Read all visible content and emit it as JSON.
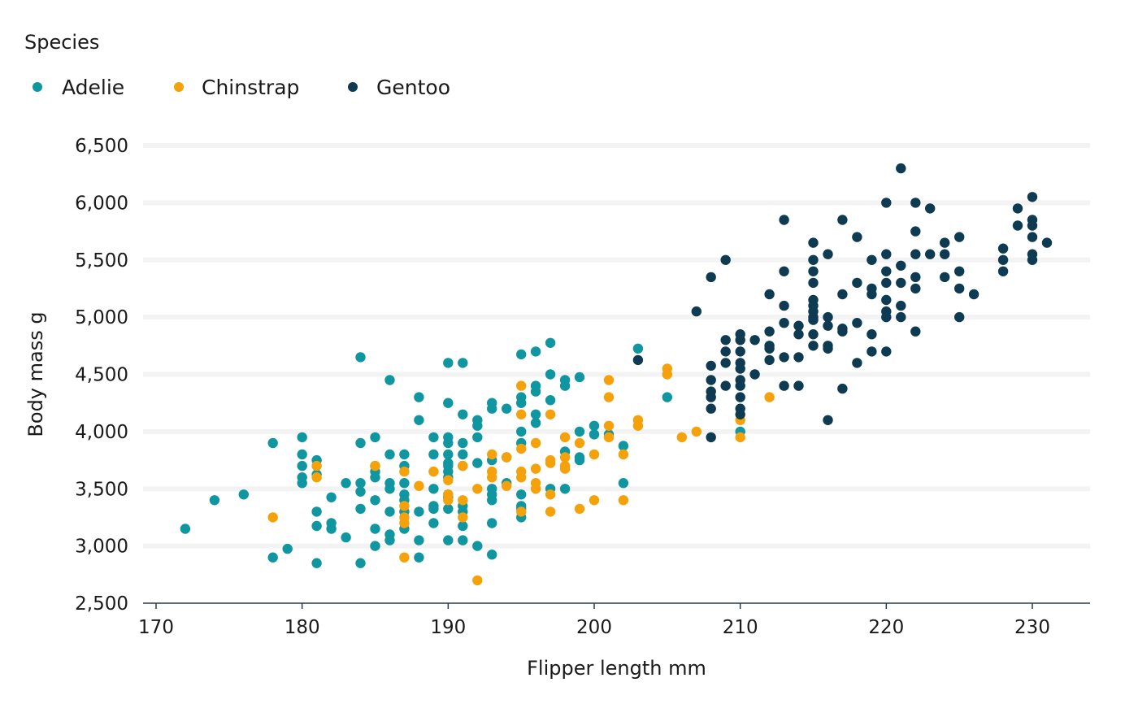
{
  "colors": {
    "Adelie": "#0f96a0",
    "Chinstrap": "#f5a10a",
    "Gentoo": "#0e3b52",
    "grid": "#f3f3f3",
    "axis": "#2b3a4a",
    "text": "#1a1a1a"
  },
  "chart_data": {
    "type": "scatter",
    "title": "",
    "xlabel": "Flipper length mm",
    "ylabel": "Body mass g",
    "legend_title": "Species",
    "legend_position": "top-left",
    "grid": "horizontal",
    "xlim": [
      169,
      234
    ],
    "ylim": [
      2500,
      6500
    ],
    "x_ticks": [
      170,
      180,
      190,
      200,
      210,
      220,
      230
    ],
    "y_ticks": [
      2500,
      3000,
      3500,
      4000,
      4500,
      5000,
      5500,
      6000,
      6500
    ],
    "x_tick_labels": [
      "170",
      "180",
      "190",
      "200",
      "210",
      "220",
      "230"
    ],
    "y_tick_labels": [
      "2,500",
      "3,000",
      "3,500",
      "4,000",
      "4,500",
      "5,000",
      "5,500",
      "6,000",
      "6,500"
    ],
    "series": [
      {
        "name": "Adelie",
        "points": [
          [
            172,
            3150
          ],
          [
            174,
            3400
          ],
          [
            176,
            3450
          ],
          [
            178,
            3900
          ],
          [
            178,
            2900
          ],
          [
            179,
            2975
          ],
          [
            180,
            3950
          ],
          [
            180,
            3800
          ],
          [
            180,
            3700
          ],
          [
            180,
            3600
          ],
          [
            180,
            3550
          ],
          [
            181,
            3750
          ],
          [
            181,
            3625
          ],
          [
            181,
            3300
          ],
          [
            181,
            3175
          ],
          [
            181,
            2850
          ],
          [
            182,
            3425
          ],
          [
            182,
            3200
          ],
          [
            182,
            3150
          ],
          [
            183,
            3550
          ],
          [
            183,
            3075
          ],
          [
            184,
            4650
          ],
          [
            184,
            3900
          ],
          [
            184,
            3550
          ],
          [
            184,
            3475
          ],
          [
            184,
            3325
          ],
          [
            184,
            2850
          ],
          [
            185,
            3950
          ],
          [
            185,
            3700
          ],
          [
            185,
            3650
          ],
          [
            185,
            3600
          ],
          [
            185,
            3400
          ],
          [
            185,
            3150
          ],
          [
            185,
            3000
          ],
          [
            186,
            4450
          ],
          [
            186,
            3800
          ],
          [
            186,
            3550
          ],
          [
            186,
            3500
          ],
          [
            186,
            3300
          ],
          [
            186,
            3100
          ],
          [
            186,
            3050
          ],
          [
            187,
            3800
          ],
          [
            187,
            3700
          ],
          [
            187,
            3550
          ],
          [
            187,
            3450
          ],
          [
            187,
            3400
          ],
          [
            187,
            3300
          ],
          [
            187,
            3150
          ],
          [
            188,
            4300
          ],
          [
            188,
            4100
          ],
          [
            188,
            3300
          ],
          [
            188,
            3050
          ],
          [
            188,
            2900
          ],
          [
            189,
            3950
          ],
          [
            189,
            3800
          ],
          [
            189,
            3500
          ],
          [
            189,
            3350
          ],
          [
            189,
            3325
          ],
          [
            189,
            3200
          ],
          [
            190,
            4600
          ],
          [
            190,
            4250
          ],
          [
            190,
            3950
          ],
          [
            190,
            3900
          ],
          [
            190,
            3800
          ],
          [
            190,
            3725
          ],
          [
            190,
            3700
          ],
          [
            190,
            3650
          ],
          [
            190,
            3600
          ],
          [
            190,
            3450
          ],
          [
            190,
            3425
          ],
          [
            190,
            3325
          ],
          [
            190,
            3050
          ],
          [
            191,
            4600
          ],
          [
            191,
            4150
          ],
          [
            191,
            3900
          ],
          [
            191,
            3800
          ],
          [
            191,
            3700
          ],
          [
            191,
            3350
          ],
          [
            191,
            3300
          ],
          [
            191,
            3175
          ],
          [
            191,
            3050
          ],
          [
            192,
            4100
          ],
          [
            192,
            4050
          ],
          [
            192,
            3950
          ],
          [
            192,
            3725
          ],
          [
            192,
            3000
          ],
          [
            193,
            4250
          ],
          [
            193,
            4200
          ],
          [
            193,
            3750
          ],
          [
            193,
            3500
          ],
          [
            193,
            3450
          ],
          [
            193,
            3400
          ],
          [
            193,
            3200
          ],
          [
            193,
            2925
          ],
          [
            194,
            4200
          ],
          [
            194,
            3775
          ],
          [
            194,
            3550
          ],
          [
            195,
            4675
          ],
          [
            195,
            4300
          ],
          [
            195,
            4250
          ],
          [
            195,
            4000
          ],
          [
            195,
            3900
          ],
          [
            195,
            3450
          ],
          [
            195,
            3350
          ],
          [
            195,
            3325
          ],
          [
            195,
            3250
          ],
          [
            196,
            4700
          ],
          [
            196,
            4400
          ],
          [
            196,
            4350
          ],
          [
            196,
            4150
          ],
          [
            196,
            4075
          ],
          [
            197,
            4775
          ],
          [
            197,
            4500
          ],
          [
            197,
            4275
          ],
          [
            197,
            3500
          ],
          [
            198,
            4450
          ],
          [
            198,
            4400
          ],
          [
            198,
            3825
          ],
          [
            198,
            3500
          ],
          [
            199,
            4475
          ],
          [
            199,
            4000
          ],
          [
            199,
            3775
          ],
          [
            199,
            3750
          ],
          [
            200,
            4050
          ],
          [
            200,
            3975
          ],
          [
            201,
            3975
          ],
          [
            202,
            3875
          ],
          [
            202,
            3550
          ],
          [
            203,
            4725
          ],
          [
            205,
            4300
          ],
          [
            210,
            4000
          ]
        ]
      },
      {
        "name": "Chinstrap",
        "points": [
          [
            178,
            3250
          ],
          [
            181,
            3700
          ],
          [
            181,
            3600
          ],
          [
            185,
            3700
          ],
          [
            187,
            3650
          ],
          [
            187,
            3350
          ],
          [
            187,
            3250
          ],
          [
            187,
            3200
          ],
          [
            187,
            2900
          ],
          [
            188,
            3525
          ],
          [
            189,
            3650
          ],
          [
            190,
            3575
          ],
          [
            190,
            3450
          ],
          [
            190,
            3400
          ],
          [
            191,
            3700
          ],
          [
            191,
            3400
          ],
          [
            191,
            3250
          ],
          [
            192,
            3500
          ],
          [
            192,
            2700
          ],
          [
            193,
            3800
          ],
          [
            193,
            3650
          ],
          [
            193,
            3600
          ],
          [
            194,
            3775
          ],
          [
            194,
            3525
          ],
          [
            195,
            4400
          ],
          [
            195,
            4150
          ],
          [
            195,
            3850
          ],
          [
            195,
            3650
          ],
          [
            195,
            3600
          ],
          [
            195,
            3300
          ],
          [
            196,
            3900
          ],
          [
            196,
            3675
          ],
          [
            196,
            3550
          ],
          [
            196,
            3500
          ],
          [
            197,
            4150
          ],
          [
            197,
            3750
          ],
          [
            197,
            3725
          ],
          [
            197,
            3450
          ],
          [
            197,
            3300
          ],
          [
            198,
            3950
          ],
          [
            198,
            3775
          ],
          [
            198,
            3700
          ],
          [
            198,
            3675
          ],
          [
            199,
            3900
          ],
          [
            199,
            3325
          ],
          [
            200,
            3800
          ],
          [
            200,
            3400
          ],
          [
            201,
            4450
          ],
          [
            201,
            4300
          ],
          [
            201,
            4050
          ],
          [
            201,
            3950
          ],
          [
            202,
            3800
          ],
          [
            202,
            3400
          ],
          [
            203,
            4100
          ],
          [
            203,
            4050
          ],
          [
            205,
            4550
          ],
          [
            205,
            4500
          ],
          [
            206,
            3950
          ],
          [
            207,
            4000
          ],
          [
            210,
            4800
          ],
          [
            210,
            4100
          ],
          [
            210,
            3950
          ],
          [
            212,
            4300
          ]
        ]
      },
      {
        "name": "Gentoo",
        "points": [
          [
            203,
            4625
          ],
          [
            207,
            5050
          ],
          [
            208,
            5350
          ],
          [
            208,
            4575
          ],
          [
            208,
            4450
          ],
          [
            208,
            4350
          ],
          [
            208,
            4300
          ],
          [
            208,
            4200
          ],
          [
            208,
            3950
          ],
          [
            209,
            5500
          ],
          [
            209,
            4800
          ],
          [
            209,
            4700
          ],
          [
            209,
            4600
          ],
          [
            209,
            4400
          ],
          [
            210,
            4850
          ],
          [
            210,
            4800
          ],
          [
            210,
            4700
          ],
          [
            210,
            4600
          ],
          [
            210,
            4550
          ],
          [
            210,
            4450
          ],
          [
            210,
            4400
          ],
          [
            210,
            4300
          ],
          [
            210,
            4200
          ],
          [
            210,
            4150
          ],
          [
            211,
            4800
          ],
          [
            211,
            4500
          ],
          [
            212,
            5200
          ],
          [
            212,
            4875
          ],
          [
            212,
            4750
          ],
          [
            212,
            4725
          ],
          [
            212,
            4625
          ],
          [
            213,
            5850
          ],
          [
            213,
            5400
          ],
          [
            213,
            5100
          ],
          [
            213,
            4950
          ],
          [
            213,
            4650
          ],
          [
            213,
            4400
          ],
          [
            214,
            4925
          ],
          [
            214,
            4850
          ],
          [
            214,
            4650
          ],
          [
            214,
            4400
          ],
          [
            215,
            5650
          ],
          [
            215,
            5500
          ],
          [
            215,
            5400
          ],
          [
            215,
            5300
          ],
          [
            215,
            5150
          ],
          [
            215,
            5100
          ],
          [
            215,
            5050
          ],
          [
            215,
            5000
          ],
          [
            215,
            4975
          ],
          [
            215,
            4850
          ],
          [
            215,
            4750
          ],
          [
            216,
            5550
          ],
          [
            216,
            5000
          ],
          [
            216,
            4925
          ],
          [
            216,
            4750
          ],
          [
            216,
            4725
          ],
          [
            216,
            4100
          ],
          [
            217,
            5850
          ],
          [
            217,
            5200
          ],
          [
            217,
            4900
          ],
          [
            217,
            4875
          ],
          [
            217,
            4375
          ],
          [
            218,
            5700
          ],
          [
            218,
            5300
          ],
          [
            218,
            4950
          ],
          [
            218,
            4600
          ],
          [
            219,
            5500
          ],
          [
            219,
            5250
          ],
          [
            219,
            5200
          ],
          [
            219,
            4850
          ],
          [
            219,
            4700
          ],
          [
            220,
            6000
          ],
          [
            220,
            5550
          ],
          [
            220,
            5400
          ],
          [
            220,
            5300
          ],
          [
            220,
            5150
          ],
          [
            220,
            5050
          ],
          [
            220,
            5000
          ],
          [
            220,
            4700
          ],
          [
            221,
            6300
          ],
          [
            221,
            5450
          ],
          [
            221,
            5300
          ],
          [
            221,
            5100
          ],
          [
            221,
            5000
          ],
          [
            222,
            6000
          ],
          [
            222,
            5750
          ],
          [
            222,
            5550
          ],
          [
            222,
            5350
          ],
          [
            222,
            5250
          ],
          [
            222,
            4875
          ],
          [
            223,
            5950
          ],
          [
            223,
            5550
          ],
          [
            224,
            5650
          ],
          [
            224,
            5550
          ],
          [
            224,
            5350
          ],
          [
            225,
            5700
          ],
          [
            225,
            5400
          ],
          [
            225,
            5250
          ],
          [
            225,
            5000
          ],
          [
            226,
            5200
          ],
          [
            228,
            5600
          ],
          [
            228,
            5500
          ],
          [
            228,
            5400
          ],
          [
            229,
            5950
          ],
          [
            229,
            5800
          ],
          [
            230,
            6050
          ],
          [
            230,
            5850
          ],
          [
            230,
            5800
          ],
          [
            230,
            5700
          ],
          [
            230,
            5550
          ],
          [
            230,
            5500
          ],
          [
            231,
            5650
          ]
        ]
      }
    ]
  }
}
